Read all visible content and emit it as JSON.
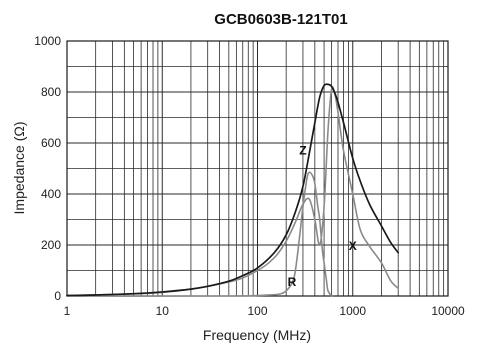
{
  "chart_data": {
    "type": "line",
    "title": "GCB0603B-121T01",
    "xlabel": "Frequency (MHz)",
    "ylabel": "Impedance (Ω)",
    "x_scale": "log",
    "xlim": [
      1,
      10000
    ],
    "ylim": [
      0,
      1000
    ],
    "x_ticks": [
      1,
      10,
      100,
      1000,
      10000
    ],
    "x_tick_labels": [
      "1",
      "10",
      "100",
      "1000",
      "10000"
    ],
    "y_ticks": [
      0,
      200,
      400,
      600,
      800,
      1000
    ],
    "y_tick_labels": [
      "0",
      "200",
      "400",
      "600",
      "800",
      "1000"
    ],
    "grid": true,
    "colors": {
      "Z": "#1a1a1a",
      "X": "#8a8a8a",
      "R": "#8a8a8a",
      "grid": "#2a2a2a"
    },
    "series": [
      {
        "name": "Z",
        "x": [
          1,
          2,
          5,
          10,
          20,
          30,
          50,
          70,
          100,
          150,
          200,
          250,
          300,
          350,
          400,
          450,
          500,
          550,
          600,
          650,
          700,
          800,
          1000,
          1200,
          1500,
          2000,
          2500,
          3000
        ],
        "y": [
          2,
          4,
          9,
          16,
          27,
          38,
          58,
          80,
          110,
          170,
          240,
          330,
          430,
          560,
          680,
          780,
          825,
          830,
          822,
          795,
          760,
          680,
          540,
          450,
          360,
          275,
          210,
          170
        ]
      },
      {
        "name": "X",
        "x": [
          1,
          10,
          50,
          100,
          150,
          200,
          250,
          300,
          350,
          400,
          450,
          500,
          550,
          600,
          650,
          700,
          800,
          1000,
          1200,
          1500,
          2000,
          2500,
          3000
        ],
        "y": [
          2,
          14,
          55,
          100,
          150,
          215,
          290,
          360,
          380,
          300,
          200,
          350,
          650,
          810,
          790,
          720,
          570,
          400,
          260,
          195,
          130,
          60,
          30
        ]
      },
      {
        "name": "R",
        "x": [
          1,
          50,
          100,
          150,
          180,
          200,
          230,
          250,
          280,
          300,
          330,
          350,
          380,
          400,
          430,
          450,
          480,
          500,
          530,
          550,
          600
        ],
        "y": [
          0,
          0,
          2,
          5,
          10,
          20,
          50,
          100,
          250,
          350,
          460,
          485,
          470,
          440,
          350,
          300,
          180,
          130,
          60,
          20,
          0
        ]
      }
    ],
    "annotations": [
      {
        "text": "Z",
        "x": 300,
        "y": 555
      },
      {
        "text": "X",
        "x": 1000,
        "y": 180
      },
      {
        "text": "R",
        "x": 230,
        "y": 40
      }
    ]
  }
}
